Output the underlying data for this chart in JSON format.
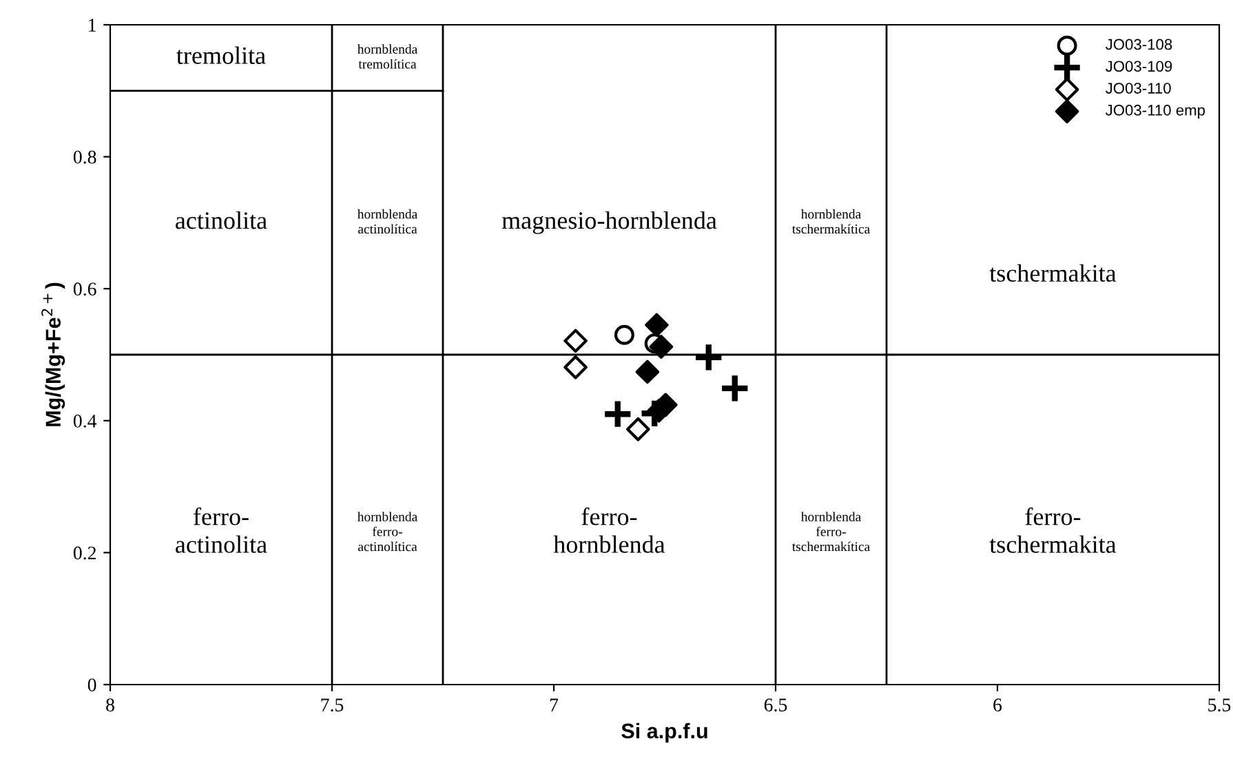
{
  "chart_data": {
    "type": "scatter",
    "xlabel": "Si a.p.f.u",
    "ylabel": "Mg/(Mg+Fe$^{2+}$)",
    "xlim": [
      8,
      5.5
    ],
    "ylim": [
      0,
      1
    ],
    "xticks": [
      8,
      7.5,
      7,
      6.5,
      6,
      5.5
    ],
    "yticks": [
      0,
      0.2,
      0.4,
      0.6,
      0.8,
      1
    ],
    "grid": false,
    "legend": "top right",
    "series": [
      {
        "name": "JO03-108",
        "color": "#ffffff",
        "marker": "circle",
        "x": [
          6.841,
          6.773
        ],
        "values": [
          0.53,
          0.517
        ]
      },
      {
        "name": "JO03-109",
        "color": "#000000",
        "marker": "cross",
        "x": [
          6.651,
          6.592,
          6.856,
          6.773
        ],
        "values": [
          0.496,
          0.449,
          0.41,
          0.411
        ]
      },
      {
        "name": "JO03-110",
        "color": "#ffffff",
        "marker": "diamond",
        "x": [
          6.951,
          6.951,
          6.81
        ],
        "values": [
          0.521,
          0.481,
          0.387
        ]
      },
      {
        "name": "JO03-110 emp",
        "color": "#000000",
        "marker": "diamond",
        "x": [
          6.768,
          6.758,
          6.789,
          6.748,
          6.763
        ],
        "values": [
          0.545,
          0.512,
          0.474,
          0.424,
          0.415
        ]
      },
      {
        "type": "line",
        "color": "#000000",
        "marker": "none",
        "x": [
          8,
          7.25
        ],
        "values": [
          0.9,
          0.9
        ]
      }
    ],
    "ref_lines": [
      {
        "axis": "x",
        "value": 7.5
      },
      {
        "axis": "x",
        "value": 7.25
      },
      {
        "axis": "x",
        "value": 6.5
      },
      {
        "axis": "x",
        "value": 6.25
      },
      {
        "axis": "y",
        "value": 0.5
      }
    ],
    "annotations": [
      "tremolita",
      "hornblenda\ntremolítica",
      "actinolita",
      "hornblenda\nactinolítica",
      "magnesio-hornblenda",
      "hornblenda\ntschermakítica",
      "tschermakita",
      "ferro-\nactinolita",
      "hornblenda\nferro-\nactinolítica",
      "ferro-\nhornblenda",
      "hornblenda\nferro-\ntschermakítica",
      "ferro-\ntschermakita"
    ]
  }
}
